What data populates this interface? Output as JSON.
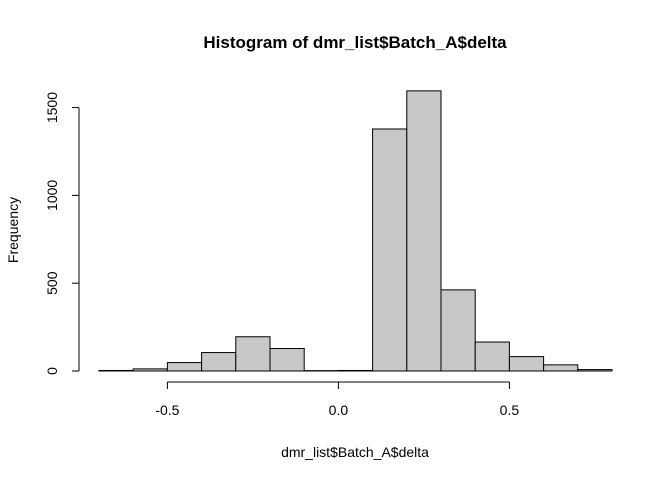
{
  "chart_data": {
    "type": "bar",
    "title": "Histogram of dmr_list$Batch_A$delta",
    "xlabel": "dmr_list$Batch_A$delta",
    "ylabel": "Frequency",
    "bin_edges": [
      -0.7,
      -0.6,
      -0.5,
      -0.4,
      -0.3,
      -0.2,
      -0.1,
      0.0,
      0.1,
      0.2,
      0.3,
      0.4,
      0.5,
      0.6,
      0.7,
      0.8
    ],
    "values": [
      3,
      12,
      48,
      105,
      195,
      128,
      2,
      3,
      1378,
      1595,
      462,
      165,
      82,
      35,
      8
    ],
    "xlim": [
      -0.7,
      0.8
    ],
    "ylim": [
      0,
      1600
    ],
    "x_ticks": [
      -0.5,
      0.0,
      0.5
    ],
    "x_tick_labels": [
      "-0.5",
      "0.0",
      "0.5"
    ],
    "y_ticks": [
      0,
      500,
      1000,
      1500
    ],
    "y_tick_labels": [
      "0",
      "500",
      "1000",
      "1500"
    ],
    "bar_color": "#c8c8c8",
    "grid": false
  }
}
